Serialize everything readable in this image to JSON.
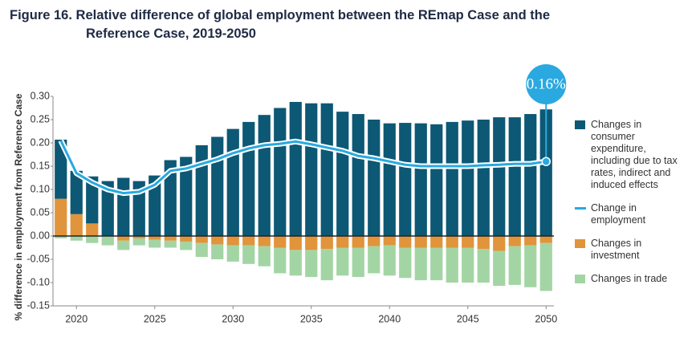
{
  "chart_data": {
    "type": "bar",
    "title": "Figure 16. Relative difference of global employment between the REmap Case and the Reference Case, 2019-2050",
    "ylabel": "% difference in employment from Reference Case",
    "x": [
      2019,
      2020,
      2021,
      2022,
      2023,
      2024,
      2025,
      2026,
      2027,
      2028,
      2029,
      2030,
      2031,
      2032,
      2033,
      2034,
      2035,
      2036,
      2037,
      2038,
      2039,
      2040,
      2041,
      2042,
      2043,
      2044,
      2045,
      2046,
      2047,
      2048,
      2049,
      2050
    ],
    "xlim": [
      2018.5,
      2050.5
    ],
    "xticks": [
      2020,
      2025,
      2030,
      2035,
      2040,
      2045,
      2050
    ],
    "ylim": [
      -0.15,
      0.3
    ],
    "yticks": [
      {
        "value": 0.3,
        "label": "0.30"
      },
      0.25,
      {
        "value": 0.2,
        "label": "0.20"
      },
      0.15,
      {
        "value": 0.1,
        "label": "0.10"
      },
      0.05,
      {
        "value": 0,
        "label": "0.00"
      },
      -0.05,
      {
        "value": -0.1,
        "label": "-0.10"
      },
      -0.15
    ],
    "grid": false,
    "legend": "right",
    "series": [
      {
        "name": "Changes in consumer expenditure, including due to tax rates, indirect and induced effects",
        "type": "bar",
        "color": "#0d5874",
        "values": [
          0.127,
          0.093,
          0.101,
          0.118,
          0.125,
          0.118,
          0.13,
          0.163,
          0.17,
          0.195,
          0.213,
          0.23,
          0.245,
          0.26,
          0.275,
          0.288,
          0.285,
          0.285,
          0.267,
          0.262,
          0.25,
          0.242,
          0.243,
          0.242,
          0.24,
          0.245,
          0.248,
          0.25,
          0.255,
          0.255,
          0.262,
          0.272
        ]
      },
      {
        "name": "Change in employment",
        "type": "line",
        "color": "#29a9e0",
        "values": [
          0.205,
          0.135,
          0.115,
          0.1,
          0.092,
          0.095,
          0.11,
          0.14,
          0.145,
          0.155,
          0.165,
          0.178,
          0.188,
          0.195,
          0.198,
          0.203,
          0.197,
          0.19,
          0.183,
          0.172,
          0.167,
          0.16,
          0.153,
          0.15,
          0.15,
          0.15,
          0.15,
          0.152,
          0.153,
          0.155,
          0.155,
          0.16
        ],
        "value_labels": [
          null,
          null,
          null,
          null,
          null,
          null,
          null,
          null,
          null,
          null,
          null,
          null,
          null,
          null,
          null,
          null,
          null,
          null,
          null,
          null,
          null,
          null,
          null,
          null,
          null,
          null,
          null,
          null,
          null,
          null,
          null,
          "0.16%"
        ]
      },
      {
        "name": "Changes in investment",
        "type": "bar",
        "color": "#e0943b",
        "values": [
          0.08,
          0.047,
          0.027,
          0,
          -0.01,
          -0.005,
          -0.008,
          -0.01,
          -0.012,
          -0.015,
          -0.018,
          -0.02,
          -0.02,
          -0.022,
          -0.025,
          -0.03,
          -0.03,
          -0.028,
          -0.025,
          -0.025,
          -0.022,
          -0.02,
          -0.025,
          -0.025,
          -0.025,
          -0.025,
          -0.025,
          -0.028,
          -0.032,
          -0.022,
          -0.02,
          -0.015
        ]
      },
      {
        "name": "Changes in trade",
        "type": "bar",
        "color": "#a3d5a4",
        "values": [
          -0.005,
          -0.01,
          -0.015,
          -0.02,
          -0.02,
          -0.015,
          -0.017,
          -0.015,
          -0.018,
          -0.03,
          -0.032,
          -0.035,
          -0.04,
          -0.043,
          -0.055,
          -0.055,
          -0.058,
          -0.067,
          -0.06,
          -0.063,
          -0.058,
          -0.065,
          -0.065,
          -0.07,
          -0.07,
          -0.075,
          -0.075,
          -0.072,
          -0.075,
          -0.083,
          -0.09,
          -0.103
        ]
      }
    ]
  }
}
